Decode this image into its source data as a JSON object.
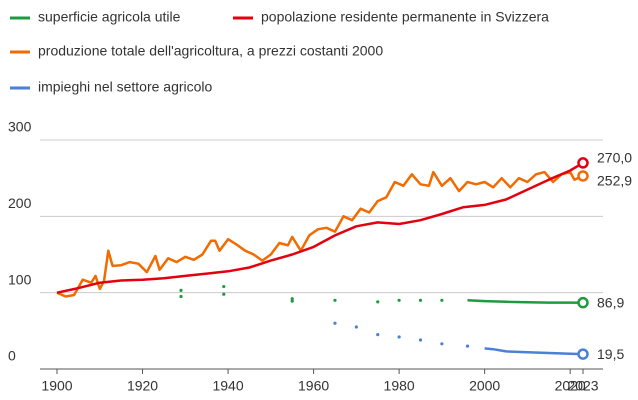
{
  "chart_data": {
    "type": "line",
    "xlim": [
      1900,
      2023
    ],
    "xticks": [
      1900,
      1920,
      1940,
      1960,
      1980,
      2000,
      2020,
      2023
    ],
    "ylim": [
      0,
      300
    ],
    "yticks": [
      0,
      100,
      200,
      300
    ],
    "grid": true,
    "series": [
      {
        "name": "superficie agricola utile",
        "color": "#1f9a3e",
        "x": [
          1929,
          null,
          1929,
          null,
          1939,
          null,
          1939,
          null,
          1955,
          null,
          1955,
          null,
          1965,
          null,
          1975,
          null,
          1980,
          null,
          1985,
          null,
          1990,
          null,
          1996,
          2000,
          2005,
          2010,
          2015,
          2020,
          2023
        ],
        "values": [
          103,
          null,
          95,
          null,
          108,
          null,
          98,
          null,
          92,
          null,
          89,
          null,
          90,
          null,
          88,
          null,
          90,
          null,
          90,
          null,
          90,
          null,
          90,
          89,
          88,
          87.5,
          87,
          87,
          86.9
        ],
        "value_labels": [
          null,
          null,
          null,
          null,
          null,
          null,
          null,
          null,
          null,
          null,
          null,
          null,
          null,
          null,
          null,
          null,
          null,
          null,
          null,
          null,
          null,
          null,
          null,
          null,
          null,
          null,
          null,
          null,
          "86,9"
        ]
      },
      {
        "name": "popolazione residente permanente in Svizzera",
        "color": "#e3000f",
        "x": [
          1900,
          1905,
          1910,
          1915,
          1920,
          1925,
          1930,
          1935,
          1940,
          1945,
          1950,
          1955,
          1960,
          1965,
          1970,
          1975,
          1980,
          1985,
          1990,
          1995,
          2000,
          2005,
          2010,
          2015,
          2020,
          2023
        ],
        "values": [
          100,
          106,
          113,
          116,
          117,
          119,
          122,
          125,
          128,
          133,
          142,
          150,
          160,
          175,
          187,
          192,
          190,
          195,
          203,
          212,
          215,
          222,
          235,
          248,
          260,
          270.0
        ],
        "value_labels": [
          null,
          null,
          null,
          null,
          null,
          null,
          null,
          null,
          null,
          null,
          null,
          null,
          null,
          null,
          null,
          null,
          null,
          null,
          null,
          null,
          null,
          null,
          null,
          null,
          null,
          "270,0"
        ]
      },
      {
        "name": "produzione totale dell'agricoltura, a prezzi costanti 2000",
        "color": "#f26b00",
        "x": [
          1900,
          1902,
          1904,
          1906,
          1908,
          1909,
          1910,
          1911,
          1912,
          1913,
          1915,
          1917,
          1919,
          1921,
          1923,
          1924,
          1926,
          1928,
          1930,
          1932,
          1934,
          1936,
          1937,
          1938,
          1940,
          1942,
          1944,
          1946,
          1948,
          1950,
          1952,
          1954,
          1955,
          1957,
          1959,
          1961,
          1963,
          1965,
          1967,
          1969,
          1971,
          1973,
          1975,
          1977,
          1979,
          1981,
          1983,
          1985,
          1987,
          1988,
          1990,
          1992,
          1994,
          1996,
          1998,
          2000,
          2002,
          2004,
          2006,
          2008,
          2010,
          2012,
          2014,
          2016,
          2018,
          2020,
          2021,
          2023
        ],
        "values": [
          100,
          95,
          97,
          117,
          113,
          122,
          105,
          115,
          155,
          135,
          136,
          140,
          138,
          127,
          148,
          130,
          145,
          140,
          147,
          143,
          150,
          168,
          168,
          155,
          170,
          163,
          155,
          150,
          142,
          150,
          165,
          162,
          173,
          155,
          175,
          183,
          185,
          180,
          200,
          195,
          210,
          205,
          220,
          225,
          245,
          240,
          255,
          242,
          240,
          258,
          240,
          250,
          233,
          245,
          242,
          245,
          238,
          250,
          238,
          250,
          245,
          255,
          258,
          245,
          255,
          258,
          248,
          252.9
        ],
        "value_labels": [
          null,
          null,
          null,
          null,
          null,
          null,
          null,
          null,
          null,
          null,
          null,
          null,
          null,
          null,
          null,
          null,
          null,
          null,
          null,
          null,
          null,
          null,
          null,
          null,
          null,
          null,
          null,
          null,
          null,
          null,
          null,
          null,
          null,
          null,
          null,
          null,
          null,
          null,
          null,
          null,
          null,
          null,
          null,
          null,
          null,
          null,
          null,
          null,
          null,
          null,
          null,
          null,
          null,
          null,
          null,
          null,
          null,
          null,
          null,
          null,
          null,
          null,
          null,
          null,
          null,
          null,
          null,
          "252,9"
        ]
      },
      {
        "name": "impieghi nel settore agricolo",
        "color": "#4a80d6",
        "x": [
          1965,
          null,
          1970,
          null,
          1975,
          null,
          1980,
          null,
          1985,
          null,
          1990,
          null,
          1996,
          null,
          2000,
          2002,
          2005,
          2010,
          2015,
          2020,
          2023
        ],
        "values": [
          60,
          null,
          55,
          null,
          45,
          null,
          42,
          null,
          38,
          null,
          33,
          null,
          30,
          null,
          27,
          26,
          23,
          22,
          21,
          20,
          19.5
        ],
        "value_labels": [
          null,
          null,
          null,
          null,
          null,
          null,
          null,
          null,
          null,
          null,
          null,
          null,
          null,
          null,
          null,
          null,
          null,
          null,
          null,
          null,
          "19,5"
        ]
      }
    ]
  }
}
